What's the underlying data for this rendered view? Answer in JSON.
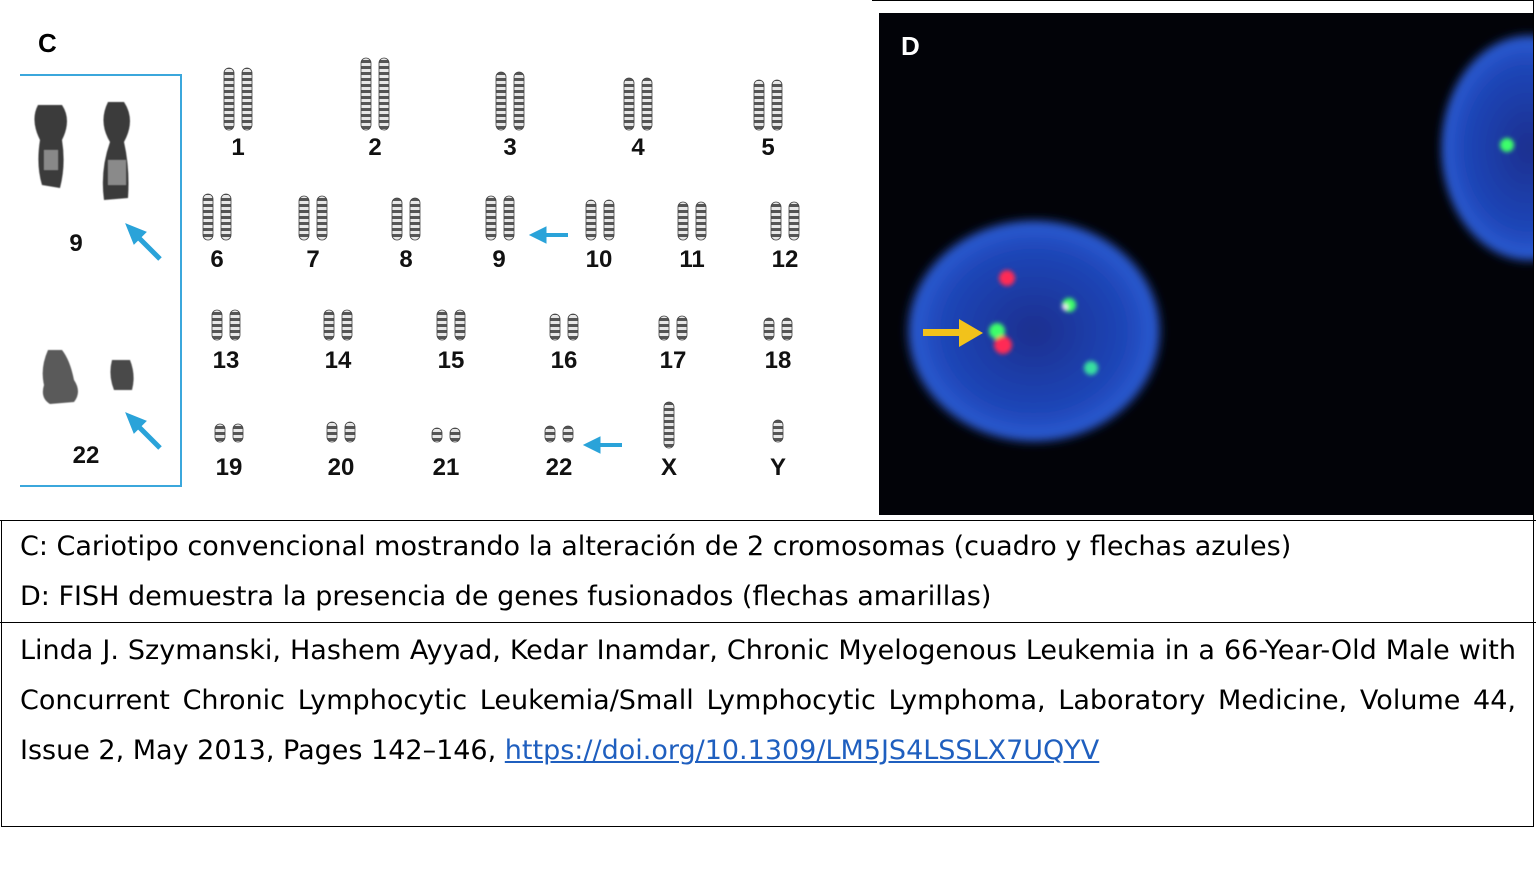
{
  "panel_c": {
    "letter": "C",
    "inset_labels": [
      "9",
      "22"
    ],
    "chromosome_labels": [
      "1",
      "2",
      "3",
      "4",
      "5",
      "6",
      "7",
      "8",
      "9",
      "10",
      "11",
      "12",
      "13",
      "14",
      "15",
      "16",
      "17",
      "18",
      "19",
      "20",
      "21",
      "22",
      "X",
      "Y"
    ]
  },
  "panel_d": {
    "letter": "D"
  },
  "colors": {
    "inset_border": "#3ba7dc",
    "blue_arrow": "#2aa3d9",
    "yellow_arrow": "#f2c21b",
    "nucleus": "#1f3fb0",
    "fish_red": "#ff2a55",
    "fish_green": "#3dff6a",
    "link": "#1f5fbf"
  },
  "captions": {
    "line_c": "C: Cariotipo convencional mostrando la alteración de 2 cromosomas (cuadro y flechas azules)",
    "line_d": "D: FISH demuestra la presencia de genes fusionados (flechas amarillas)"
  },
  "reference": {
    "text": "Linda J. Szymanski, Hashem Ayyad, Kedar Inamdar, Chronic Myelogenous Leukemia in a 66-Year-Old Male with Concurrent Chronic Lymphocytic Leukemia/Small Lymphocytic Lymphoma, Laboratory Medicine, Volume 44, Issue 2, May 2013, Pages 142–146,",
    "doi_link": "https://doi.org/10.1309/LM5JS4LSSLX7UQYV"
  }
}
